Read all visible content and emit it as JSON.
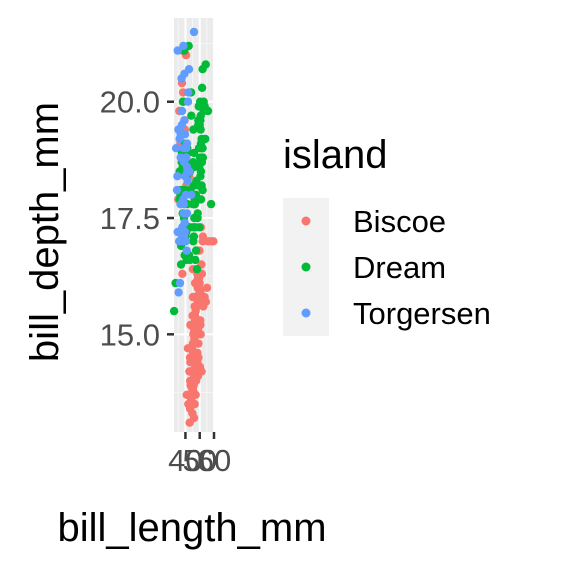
{
  "chart_data": {
    "type": "scatter",
    "xlabel": "bill_length_mm",
    "ylabel": "bill_depth_mm",
    "xlim": [
      32,
      60
    ],
    "ylim": [
      12.9,
      21.8
    ],
    "x_ticks": [
      40,
      50,
      60
    ],
    "x_tick_labels": [
      "40",
      "50",
      "60"
    ],
    "y_ticks": [
      15.0,
      17.5,
      20.0
    ],
    "y_tick_labels": [
      "15.0",
      "17.5",
      "20.0"
    ],
    "grid": true,
    "legend": {
      "title": "island",
      "placement": "right"
    },
    "series": [
      {
        "name": "Biscoe",
        "color": "#F8766D",
        "points": [
          [
            37.8,
            21.1
          ],
          [
            38.4,
            20.2
          ],
          [
            39.6,
            19.4
          ],
          [
            37.6,
            20.4
          ],
          [
            36.5,
            19.1
          ],
          [
            40.5,
            21.0
          ],
          [
            35.7,
            19.8
          ],
          [
            40.7,
            18.2
          ],
          [
            38.3,
            17.3
          ],
          [
            40.5,
            18.7
          ],
          [
            41.0,
            19.1
          ],
          [
            35.5,
            18.1
          ],
          [
            37.9,
            17.3
          ],
          [
            39.4,
            19.6
          ],
          [
            39.7,
            17.8
          ],
          [
            37.9,
            16.3
          ],
          [
            41.0,
            18.1
          ],
          [
            41.4,
            19.0
          ],
          [
            35.0,
            17.9
          ],
          [
            42.7,
            18.4
          ],
          [
            38.7,
            17.6
          ],
          [
            58.0,
            17.0
          ],
          [
            46.1,
            13.2
          ],
          [
            50.0,
            16.3
          ],
          [
            48.7,
            14.1
          ],
          [
            50.0,
            15.2
          ],
          [
            47.6,
            14.5
          ],
          [
            46.5,
            13.5
          ],
          [
            45.4,
            14.6
          ],
          [
            46.7,
            15.3
          ],
          [
            43.3,
            13.4
          ],
          [
            46.8,
            15.4
          ],
          [
            40.9,
            13.7
          ],
          [
            49.0,
            16.1
          ],
          [
            45.5,
            13.7
          ],
          [
            48.4,
            14.6
          ],
          [
            45.8,
            14.6
          ],
          [
            49.3,
            15.7
          ],
          [
            42.0,
            13.5
          ],
          [
            49.2,
            15.2
          ],
          [
            46.2,
            14.5
          ],
          [
            48.7,
            15.1
          ],
          [
            50.2,
            14.3
          ],
          [
            45.1,
            14.5
          ],
          [
            46.5,
            14.5
          ],
          [
            46.3,
            15.8
          ],
          [
            42.9,
            13.1
          ],
          [
            46.1,
            15.1
          ],
          [
            47.8,
            15.0
          ],
          [
            48.2,
            14.3
          ],
          [
            50.0,
            15.3
          ],
          [
            47.3,
            15.3
          ],
          [
            42.8,
            14.2
          ],
          [
            45.1,
            14.5
          ],
          [
            59.6,
            17.0
          ],
          [
            49.1,
            14.8
          ],
          [
            48.4,
            16.3
          ],
          [
            42.6,
            13.7
          ],
          [
            44.4,
            17.3
          ],
          [
            44.0,
            13.6
          ],
          [
            48.7,
            15.7
          ],
          [
            42.7,
            13.7
          ],
          [
            49.6,
            16.0
          ],
          [
            45.3,
            13.7
          ],
          [
            49.6,
            15.0
          ],
          [
            50.5,
            15.9
          ],
          [
            43.6,
            13.9
          ],
          [
            45.5,
            13.9
          ],
          [
            50.5,
            15.9
          ],
          [
            44.9,
            13.3
          ],
          [
            45.2,
            15.8
          ],
          [
            46.6,
            14.2
          ],
          [
            48.5,
            14.1
          ],
          [
            45.1,
            14.4
          ],
          [
            50.1,
            15.0
          ],
          [
            46.5,
            14.4
          ],
          [
            45.0,
            15.4
          ],
          [
            43.8,
            13.9
          ],
          [
            45.5,
            15.0
          ],
          [
            43.2,
            14.5
          ],
          [
            50.4,
            15.3
          ],
          [
            45.3,
            13.8
          ],
          [
            46.2,
            14.9
          ],
          [
            45.7,
            13.9
          ],
          [
            54.3,
            15.7
          ],
          [
            45.8,
            14.2
          ],
          [
            49.8,
            16.8
          ],
          [
            46.2,
            14.4
          ],
          [
            49.5,
            16.2
          ],
          [
            43.5,
            14.2
          ],
          [
            50.7,
            15.0
          ],
          [
            47.7,
            15.0
          ],
          [
            46.4,
            15.6
          ],
          [
            48.2,
            15.6
          ],
          [
            46.5,
            14.8
          ],
          [
            46.4,
            15.0
          ],
          [
            48.6,
            16.0
          ],
          [
            47.5,
            14.2
          ],
          [
            51.1,
            16.3
          ],
          [
            45.2,
            13.8
          ],
          [
            45.2,
            16.4
          ],
          [
            49.1,
            14.5
          ],
          [
            52.5,
            15.6
          ],
          [
            47.4,
            14.6
          ],
          [
            50.0,
            15.9
          ],
          [
            44.9,
            13.8
          ],
          [
            50.8,
            17.3
          ],
          [
            43.4,
            14.4
          ],
          [
            51.3,
            14.2
          ],
          [
            47.5,
            14.0
          ],
          [
            52.1,
            17.0
          ],
          [
            47.5,
            15.0
          ],
          [
            52.2,
            17.1
          ],
          [
            45.5,
            14.5
          ],
          [
            49.5,
            16.1
          ],
          [
            44.5,
            14.7
          ],
          [
            50.8,
            15.7
          ],
          [
            49.4,
            15.8
          ],
          [
            46.9,
            14.6
          ],
          [
            48.4,
            14.4
          ],
          [
            51.1,
            16.5
          ],
          [
            48.5,
            15.0
          ],
          [
            55.9,
            17.0
          ],
          [
            47.2,
            15.5
          ],
          [
            49.1,
            15.0
          ],
          [
            46.8,
            16.1
          ],
          [
            41.7,
            14.7
          ],
          [
            53.4,
            15.8
          ],
          [
            43.3,
            14.0
          ],
          [
            48.1,
            15.1
          ],
          [
            50.5,
            15.2
          ],
          [
            49.8,
            15.9
          ],
          [
            43.5,
            15.2
          ],
          [
            51.5,
            16.3
          ],
          [
            46.2,
            14.1
          ],
          [
            55.1,
            16.0
          ],
          [
            48.8,
            16.2
          ],
          [
            47.2,
            13.7
          ],
          [
            46.8,
            14.3
          ],
          [
            50.4,
            15.7
          ],
          [
            45.2,
            14.8
          ],
          [
            49.9,
            16.1
          ]
        ]
      },
      {
        "name": "Dream",
        "color": "#00BA38",
        "points": [
          [
            39.5,
            16.7
          ],
          [
            37.2,
            18.1
          ],
          [
            39.5,
            17.8
          ],
          [
            40.9,
            18.9
          ],
          [
            36.4,
            17.0
          ],
          [
            39.2,
            21.1
          ],
          [
            38.8,
            20.0
          ],
          [
            42.2,
            18.5
          ],
          [
            37.6,
            19.3
          ],
          [
            39.8,
            19.1
          ],
          [
            36.5,
            18.0
          ],
          [
            40.8,
            18.4
          ],
          [
            36.0,
            18.5
          ],
          [
            44.1,
            19.7
          ],
          [
            37.0,
            16.9
          ],
          [
            39.6,
            18.8
          ],
          [
            41.1,
            19.0
          ],
          [
            37.5,
            18.9
          ],
          [
            36.0,
            17.9
          ],
          [
            42.3,
            21.2
          ],
          [
            39.6,
            18.1
          ],
          [
            40.3,
            18.5
          ],
          [
            33.1,
            16.1
          ],
          [
            43.2,
            18.5
          ],
          [
            38.1,
            17.6
          ],
          [
            37.0,
            16.5
          ],
          [
            36.2,
            17.2
          ],
          [
            39.2,
            18.6
          ],
          [
            37.4,
            18.7
          ],
          [
            38.2,
            20.0
          ],
          [
            36.6,
            17.8
          ],
          [
            44.0,
            20.2
          ],
          [
            37.5,
            18.5
          ],
          [
            38.1,
            18.6
          ],
          [
            40.2,
            17.1
          ],
          [
            37.8,
            18.1
          ],
          [
            39.0,
            17.5
          ],
          [
            40.8,
            18.9
          ],
          [
            32.1,
            15.5
          ],
          [
            40.4,
            18.7
          ],
          [
            35.7,
            17.0
          ],
          [
            41.5,
            18.5
          ],
          [
            46.5,
            17.9
          ],
          [
            50.0,
            19.5
          ],
          [
            51.3,
            19.2
          ],
          [
            45.4,
            18.7
          ],
          [
            52.7,
            19.8
          ],
          [
            45.2,
            17.8
          ],
          [
            46.1,
            18.2
          ],
          [
            51.3,
            18.2
          ],
          [
            46.0,
            18.9
          ],
          [
            51.3,
            19.9
          ],
          [
            46.6,
            17.8
          ],
          [
            51.7,
            20.3
          ],
          [
            47.0,
            17.3
          ],
          [
            52.0,
            18.1
          ],
          [
            45.9,
            17.1
          ],
          [
            50.5,
            19.6
          ],
          [
            50.3,
            20.0
          ],
          [
            58.0,
            17.8
          ],
          [
            46.4,
            18.6
          ],
          [
            49.2,
            18.2
          ],
          [
            42.4,
            17.3
          ],
          [
            48.5,
            17.5
          ],
          [
            43.2,
            16.6
          ],
          [
            50.6,
            19.4
          ],
          [
            46.7,
            17.9
          ],
          [
            52.0,
            19.0
          ],
          [
            50.5,
            18.4
          ],
          [
            49.5,
            19.0
          ],
          [
            46.4,
            17.8
          ],
          [
            52.8,
            20.0
          ],
          [
            40.9,
            16.6
          ],
          [
            54.2,
            20.8
          ],
          [
            42.5,
            16.7
          ],
          [
            51.0,
            18.8
          ],
          [
            49.7,
            18.6
          ],
          [
            47.5,
            16.8
          ],
          [
            47.6,
            18.3
          ],
          [
            52.0,
            20.7
          ],
          [
            46.9,
            16.6
          ],
          [
            53.5,
            19.9
          ],
          [
            49.0,
            19.5
          ],
          [
            46.2,
            17.5
          ],
          [
            50.9,
            19.1
          ],
          [
            45.5,
            17.0
          ],
          [
            50.9,
            17.9
          ],
          [
            50.8,
            18.5
          ],
          [
            50.1,
            17.9
          ],
          [
            49.0,
            19.6
          ],
          [
            51.5,
            18.7
          ],
          [
            49.8,
            17.3
          ],
          [
            48.1,
            16.4
          ],
          [
            51.4,
            19.0
          ],
          [
            45.7,
            17.3
          ],
          [
            50.7,
            19.7
          ],
          [
            42.5,
            17.3
          ],
          [
            52.2,
            18.8
          ],
          [
            45.6,
            19.4
          ],
          [
            49.3,
            19.9
          ],
          [
            50.2,
            18.8
          ],
          [
            55.8,
            19.8
          ],
          [
            43.5,
            18.1
          ],
          [
            49.6,
            18.2
          ],
          [
            50.8,
            19.0
          ],
          [
            50.2,
            18.7
          ],
          [
            45.6,
            17.8
          ],
          [
            47.3,
            18.0
          ],
          [
            53.9,
            19.2
          ],
          [
            44.3,
            18.0
          ],
          [
            48.6,
            17.6
          ],
          [
            40.6,
            17.2
          ],
          [
            41.3,
            17.8
          ],
          [
            41.8,
            18.9
          ]
        ]
      },
      {
        "name": "Torgersen",
        "color": "#619CFF",
        "points": [
          [
            39.1,
            18.7
          ],
          [
            39.5,
            17.4
          ],
          [
            40.3,
            18.0
          ],
          [
            36.7,
            19.3
          ],
          [
            39.3,
            20.6
          ],
          [
            38.9,
            17.8
          ],
          [
            39.2,
            19.6
          ],
          [
            34.1,
            18.1
          ],
          [
            42.0,
            20.2
          ],
          [
            37.8,
            17.1
          ],
          [
            37.8,
            17.3
          ],
          [
            41.1,
            17.6
          ],
          [
            38.6,
            21.2
          ],
          [
            34.6,
            21.1
          ],
          [
            36.6,
            17.8
          ],
          [
            38.7,
            19.0
          ],
          [
            42.5,
            20.7
          ],
          [
            34.4,
            18.4
          ],
          [
            46.0,
            21.5
          ],
          [
            35.9,
            19.2
          ],
          [
            41.8,
            20.0
          ],
          [
            33.5,
            19.0
          ],
          [
            39.7,
            18.4
          ],
          [
            40.6,
            18.8
          ],
          [
            41.1,
            18.6
          ],
          [
            42.8,
            18.5
          ],
          [
            35.1,
            19.4
          ],
          [
            40.9,
            16.8
          ],
          [
            37.5,
            19.5
          ],
          [
            36.2,
            16.1
          ],
          [
            39.7,
            19.3
          ],
          [
            36.7,
            18.8
          ],
          [
            39.6,
            17.2
          ],
          [
            40.2,
            17.0
          ],
          [
            41.4,
            18.5
          ],
          [
            38.6,
            17.0
          ],
          [
            34.6,
            17.2
          ],
          [
            37.3,
            20.5
          ],
          [
            35.7,
            17.0
          ],
          [
            41.1,
            19.1
          ],
          [
            36.2,
            17.2
          ],
          [
            37.7,
            19.8
          ],
          [
            40.2,
            17.0
          ],
          [
            41.4,
            18.5
          ],
          [
            35.2,
            15.9
          ],
          [
            40.6,
            19.0
          ],
          [
            38.8,
            17.6
          ],
          [
            41.5,
            18.3
          ],
          [
            39.0,
            17.1
          ],
          [
            44.1,
            18.0
          ],
          [
            38.5,
            17.9
          ]
        ]
      }
    ]
  }
}
